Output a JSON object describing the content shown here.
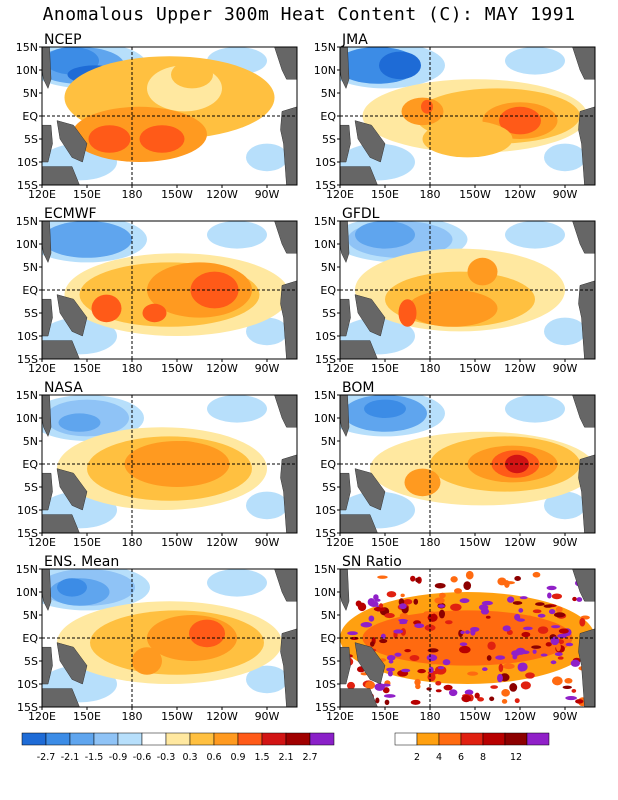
{
  "title": "Anomalous Upper 300m Heat Content (C): MAY 1991",
  "panels": [
    {
      "label": "NCEP"
    },
    {
      "label": "JMA"
    },
    {
      "label": "ECMWF"
    },
    {
      "label": "GFDL"
    },
    {
      "label": "NASA"
    },
    {
      "label": "BOM"
    },
    {
      "label": "ENS. Mean"
    },
    {
      "label": "SN Ratio"
    }
  ],
  "axes": {
    "lon_labels": [
      "120E",
      "150E",
      "180",
      "150W",
      "120W",
      "90W"
    ],
    "lat_labels": [
      "15N",
      "10N",
      "5N",
      "EQ",
      "5S",
      "10S",
      "15S"
    ]
  },
  "colorbars": {
    "anomaly": {
      "colors": [
        "#1e6bd6",
        "#3c8ce6",
        "#5fa5ee",
        "#8fc3f6",
        "#b7dffb",
        "#ffffff",
        "#ffe8a0",
        "#ffc040",
        "#ff9a20",
        "#ff5a18",
        "#d21414",
        "#a00000",
        "#8a20c8"
      ],
      "labels": [
        "-2.7",
        "-2.1",
        "-1.5",
        "-0.9",
        "-0.6",
        "-0.3",
        "0.3",
        "0.6",
        "0.9",
        "1.5",
        "2.1",
        "2.7"
      ]
    },
    "sn": {
      "colors": [
        "#ffffff",
        "#ffa010",
        "#ff6a10",
        "#e02010",
        "#b80000",
        "#8c0000",
        "#9020c8"
      ],
      "labels": [
        "2",
        "4",
        "6",
        "8",
        "12"
      ]
    }
  },
  "chart_data": {
    "type": "heatmap",
    "title": "Anomalous Upper 300m Heat Content (C): MAY 1991",
    "x_range": [
      "120E",
      "70W"
    ],
    "y_range": [
      "15S",
      "15N"
    ],
    "panels": [
      {
        "name": "NCEP",
        "features": [
          {
            "region": "western tropical north Pacific 8N-15N",
            "anomaly": -1.5
          },
          {
            "region": "central equatorial/south Pacific 160E-150W, 5S-8S",
            "anomaly": 1.5
          },
          {
            "region": "equatorial band 150E-100W",
            "anomaly": 0.9
          }
        ]
      },
      {
        "name": "JMA",
        "features": [
          {
            "region": "western tropical north Pacific",
            "anomaly": -1.5
          },
          {
            "region": "eastern equatorial Pacific 130W-110W",
            "anomaly": 1.5
          },
          {
            "region": "equatorial band 150E-100W",
            "anomaly": 0.9
          }
        ]
      },
      {
        "name": "ECMWF",
        "features": [
          {
            "region": "north tropical Pacific 8N-15N",
            "anomaly": -0.9
          },
          {
            "region": "eastern equatorial Pacific 130W-120W",
            "anomaly": 1.5
          },
          {
            "region": "equatorial band 150E-100W",
            "anomaly": 0.9
          }
        ]
      },
      {
        "name": "GFDL",
        "features": [
          {
            "region": "north tropical Pacific",
            "anomaly": -0.9
          },
          {
            "region": "equatorial band 150E-110W",
            "anomaly": 0.9
          },
          {
            "region": "160E-150W near 5S",
            "anomaly": 1.5
          }
        ]
      },
      {
        "name": "NASA",
        "features": [
          {
            "region": "western tropical north Pacific",
            "anomaly": -0.9
          },
          {
            "region": "equatorial band 150E-110W",
            "anomaly": 0.9
          }
        ]
      },
      {
        "name": "BOM",
        "features": [
          {
            "region": "western tropical north Pacific",
            "anomaly": -0.9
          },
          {
            "region": "eastern equatorial Pacific 130W-110W",
            "anomaly": 2.1
          },
          {
            "region": "equatorial band 160E-100W",
            "anomaly": 0.9
          }
        ]
      },
      {
        "name": "ENS. Mean",
        "features": [
          {
            "region": "north tropical Pacific 8N-15N",
            "anomaly": -1.5
          },
          {
            "region": "equatorial band 150E-110W",
            "anomaly": 0.9
          },
          {
            "region": "near 130W EQ-5S",
            "anomaly": 1.5
          }
        ]
      },
      {
        "name": "SN Ratio",
        "features": [
          {
            "region": "equatorial band 160E-100W",
            "sn": 8
          },
          {
            "region": "north tropical western Pacific",
            "sn": 6
          }
        ]
      }
    ]
  }
}
